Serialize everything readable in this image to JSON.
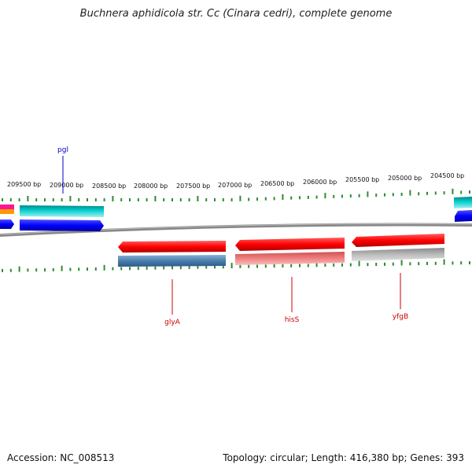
{
  "title": "Buchnera aphidicola str. Cc (Cinara cedri), complete genome",
  "footer": {
    "accession": "Accession: NC_008513",
    "stats": "Topology: circular; Length: 416,380 bp; Genes: 393"
  },
  "scale_labels": [
    "209500 bp",
    "209000 bp",
    "208500 bp",
    "208000 bp",
    "207500 bp",
    "207000 bp",
    "206500 bp",
    "206000 bp",
    "205500 bp",
    "205000 bp",
    "204500 bp"
  ],
  "genes": [
    {
      "name": "pgl",
      "color": "#0000cc"
    },
    {
      "name": "glyA",
      "color": "#cc0000"
    },
    {
      "name": "hisS",
      "color": "#cc0000"
    },
    {
      "name": "yfgB",
      "color": "#cc0000"
    }
  ],
  "colors": {
    "backbone": "#888888",
    "tick": "#2e8b2e",
    "red": "#ff0000",
    "blue": "#0000ff",
    "cyan": "#00cccc",
    "steelblue": "#4a7fb0",
    "pink": "#f08080",
    "gray": "#bbbbbb",
    "magenta": "#ff1493",
    "orange": "#ff9900"
  }
}
